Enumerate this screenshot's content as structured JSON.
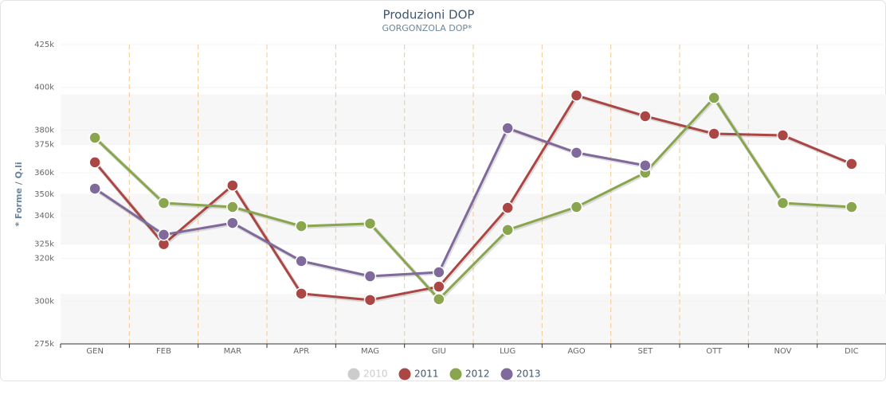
{
  "chart_data": {
    "type": "line",
    "title": "Produzioni DOP",
    "subtitle": "GORGONZOLA DOP*",
    "y_label": "* Forme / Q.li",
    "categories": [
      "GEN",
      "FEB",
      "MAR",
      "APR",
      "MAG",
      "GIU",
      "LUG",
      "AGO",
      "SET",
      "OTT",
      "NOV",
      "DIC"
    ],
    "ylim": [
      275000,
      425000
    ],
    "yticks": [
      {
        "value": 275000,
        "label": "275k"
      },
      {
        "value": 325000,
        "label": "325k"
      },
      {
        "value": 350000,
        "label": "350k"
      },
      {
        "value": 375000,
        "label": "375k"
      },
      {
        "value": 425000,
        "label": "425k"
      }
    ],
    "y2lim": [
      280000,
      420000
    ],
    "y2ticks": [
      {
        "value": 300000,
        "label": "300k"
      },
      {
        "value": 320000,
        "label": "320k"
      },
      {
        "value": 340000,
        "label": "340k"
      },
      {
        "value": 360000,
        "label": "360k"
      },
      {
        "value": 380000,
        "label": "380k"
      },
      {
        "value": 400000,
        "label": "400k"
      }
    ],
    "series": [
      {
        "name": "2010",
        "color": "#cccccc",
        "hidden": true,
        "values": [
          null,
          null,
          null,
          null,
          null,
          null,
          null,
          null,
          null,
          null,
          null,
          null
        ]
      },
      {
        "name": "2011",
        "color": "#aa4643",
        "values": [
          366000,
          325000,
          354400,
          300200,
          297000,
          303700,
          343200,
          399500,
          389100,
          380300,
          379500,
          365200
        ]
      },
      {
        "name": "2012",
        "color": "#89a54e",
        "values": [
          378300,
          345600,
          343600,
          334000,
          335300,
          297400,
          332100,
          343600,
          360800,
          398300,
          345600,
          343600
        ]
      },
      {
        "name": "2013",
        "color": "#80699b",
        "values": [
          352800,
          329700,
          335600,
          316500,
          308900,
          310900,
          383100,
          370800,
          364400,
          null,
          null,
          null
        ]
      }
    ]
  }
}
